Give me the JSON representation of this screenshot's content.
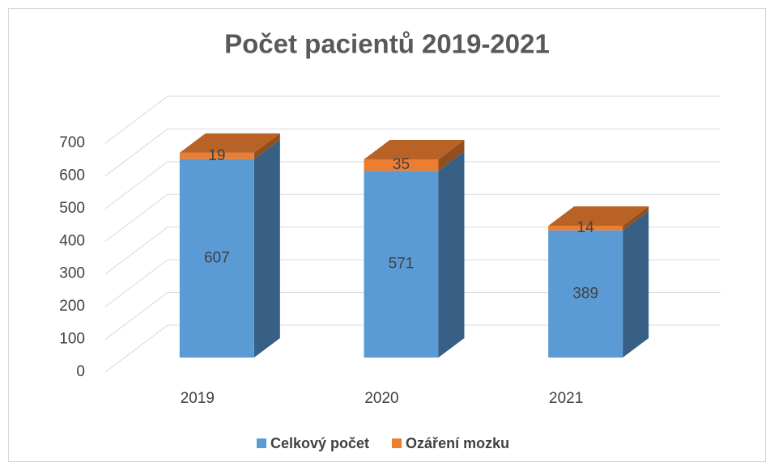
{
  "chart_data": {
    "type": "bar3d_stacked",
    "title": "Počet pacientů 2019-2021",
    "categories": [
      "2019",
      "2020",
      "2021"
    ],
    "series": [
      {
        "name": "Celkový počet",
        "color": "#5b9bd5",
        "values": [
          607,
          571,
          389
        ]
      },
      {
        "name": "Ozáření mozku",
        "color": "#ed7d31",
        "values": [
          19,
          35,
          14
        ]
      }
    ],
    "ylim": [
      0,
      700
    ],
    "yticks": [
      0,
      100,
      200,
      300,
      400,
      500,
      600,
      700
    ],
    "grid": true,
    "legend": "bottom"
  }
}
